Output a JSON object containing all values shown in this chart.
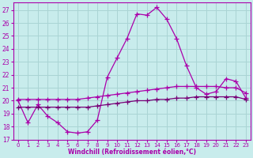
{
  "xlabel": "Windchill (Refroidissement éolien,°C)",
  "bg_color": "#c8ecec",
  "grid_color": "#aad4d4",
  "line_color": "#aa00aa",
  "line_color2": "#770077",
  "xlim": [
    -0.5,
    23.5
  ],
  "ylim": [
    17.0,
    27.6
  ],
  "yticks": [
    17,
    18,
    19,
    20,
    21,
    22,
    23,
    24,
    25,
    26,
    27
  ],
  "xticks": [
    0,
    1,
    2,
    3,
    4,
    5,
    6,
    7,
    8,
    9,
    10,
    11,
    12,
    13,
    14,
    15,
    16,
    17,
    18,
    19,
    20,
    21,
    22,
    23
  ],
  "curve1_x": [
    0,
    1,
    2,
    3,
    4,
    5,
    6,
    7,
    8,
    9,
    10,
    11,
    12,
    13,
    14,
    15,
    16,
    17,
    18,
    19,
    20,
    21,
    22,
    23
  ],
  "curve1_y": [
    20.0,
    18.3,
    19.7,
    18.8,
    18.3,
    17.6,
    17.5,
    17.6,
    18.5,
    21.8,
    23.3,
    24.8,
    26.7,
    26.6,
    27.2,
    26.3,
    24.8,
    22.7,
    21.0,
    20.5,
    20.7,
    21.7,
    21.5,
    20.2
  ],
  "curve2_x": [
    0,
    1,
    2,
    3,
    4,
    5,
    6,
    7,
    8,
    9,
    10,
    11,
    12,
    13,
    14,
    15,
    16,
    17,
    18,
    19,
    20,
    21,
    22,
    23
  ],
  "curve2_y": [
    19.5,
    19.5,
    19.5,
    19.5,
    19.5,
    19.5,
    19.5,
    19.5,
    19.6,
    19.7,
    19.8,
    19.9,
    20.0,
    20.0,
    20.1,
    20.1,
    20.2,
    20.2,
    20.3,
    20.3,
    20.3,
    20.3,
    20.3,
    20.1
  ],
  "curve3_x": [
    0,
    1,
    2,
    3,
    4,
    5,
    6,
    7,
    8,
    9,
    10,
    11,
    12,
    13,
    14,
    15,
    16,
    17,
    18,
    19,
    20,
    21,
    22,
    23
  ],
  "curve3_y": [
    20.1,
    20.1,
    20.1,
    20.1,
    20.1,
    20.1,
    20.1,
    20.2,
    20.3,
    20.4,
    20.5,
    20.6,
    20.7,
    20.8,
    20.9,
    21.0,
    21.1,
    21.1,
    21.1,
    21.1,
    21.1,
    21.0,
    21.0,
    20.6
  ]
}
